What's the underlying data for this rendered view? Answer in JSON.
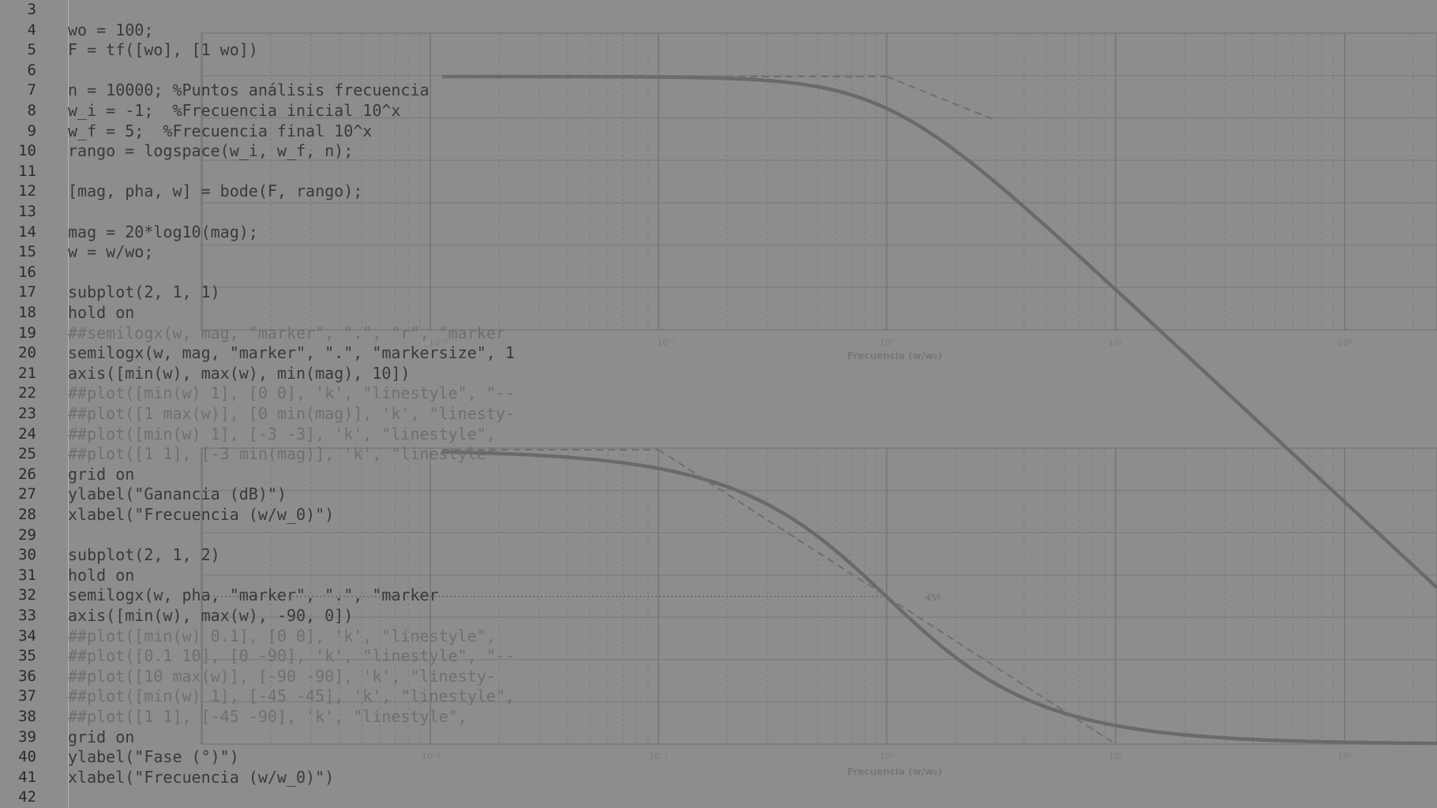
{
  "editor": {
    "lines": [
      {
        "n": "3",
        "code": ""
      },
      {
        "n": "4",
        "code": "wo = 100;"
      },
      {
        "n": "5",
        "code": "F = tf([wo], [1 wo])"
      },
      {
        "n": "6",
        "code": ""
      },
      {
        "n": "7",
        "code": "n = 10000; %Puntos análisis frecuencia"
      },
      {
        "n": "8",
        "code": "w_i = -1;  %Frecuencia inicial 10^x"
      },
      {
        "n": "9",
        "code": "w_f = 5;  %Frecuencia final 10^x"
      },
      {
        "n": "10",
        "code": "rango = logspace(w_i, w_f, n);"
      },
      {
        "n": "11",
        "code": ""
      },
      {
        "n": "12",
        "code": "[mag, pha, w] = bode(F, rango);"
      },
      {
        "n": "13",
        "code": ""
      },
      {
        "n": "14",
        "code": "mag = 20*log10(mag);"
      },
      {
        "n": "15",
        "code": "w = w/wo;"
      },
      {
        "n": "16",
        "code": ""
      },
      {
        "n": "17",
        "code": "subplot(2, 1, 1)"
      },
      {
        "n": "18",
        "code": "hold on"
      },
      {
        "n": "19",
        "code": "##semilogx(w, mag, \"marker\", \".\", \"r\", \"marker"
      },
      {
        "n": "20",
        "code": "semilogx(w, mag, \"marker\", \".\", \"markersize\", 1"
      },
      {
        "n": "21",
        "code": "axis([min(w), max(w), min(mag), 10])"
      },
      {
        "n": "22",
        "code": "##plot([min(w) 1], [0 0], 'k', \"linestyle\", \"--"
      },
      {
        "n": "23",
        "code": "##plot([1 max(w)], [0 min(mag)], 'k', \"linesty-"
      },
      {
        "n": "24",
        "code": "##plot([min(w) 1], [-3 -3], 'k', \"linestyle\","
      },
      {
        "n": "25",
        "code": "##plot([1 1], [-3 min(mag)], 'k', \"linestyle\""
      },
      {
        "n": "26",
        "code": "grid on"
      },
      {
        "n": "27",
        "code": "ylabel(\"Ganancia (dB)\")"
      },
      {
        "n": "28",
        "code": "xlabel(\"Frecuencia (w/w_0)\")"
      },
      {
        "n": "29",
        "code": ""
      },
      {
        "n": "30",
        "code": "subplot(2, 1, 2)"
      },
      {
        "n": "31",
        "code": "hold on"
      },
      {
        "n": "32",
        "code": "semilogx(w, pha, \"marker\", \".\", \"marker"
      },
      {
        "n": "33",
        "code": "axis([min(w), max(w), -90, 0])"
      },
      {
        "n": "34",
        "code": "##plot([min(w) 0.1], [0 0], 'k', \"linestyle\","
      },
      {
        "n": "35",
        "code": "##plot([0.1 10], [0 -90], 'k', \"linestyle\", \"--"
      },
      {
        "n": "36",
        "code": "##plot([10 max(w)], [-90 -90], 'k', \"linesty-"
      },
      {
        "n": "37",
        "code": "##plot([min(w) 1], [-45 -45], 'k', \"linestyle\","
      },
      {
        "n": "38",
        "code": "##plot([1 1], [-45 -90], 'k', \"linestyle\","
      },
      {
        "n": "39",
        "code": "grid on"
      },
      {
        "n": "40",
        "code": "ylabel(\"Fase (°)\")"
      },
      {
        "n": "41",
        "code": "xlabel(\"Frecuencia (w/w_0)\")"
      },
      {
        "n": "42",
        "code": ""
      }
    ]
  },
  "background_plot": {
    "top_ticks": [
      "10⁻²",
      "10⁻¹",
      "10⁰",
      "10¹",
      "10²"
    ],
    "top_xlabel": "Frecuencia (w/w₀)",
    "bottom_ticks": [
      "10⁻²",
      "10⁻¹",
      "10⁰",
      "10¹",
      "10²"
    ],
    "bottom_xlabel": "Frecuencia (w/w₀)",
    "annotation": "45º",
    "stray_tick": "10⁻²"
  }
}
